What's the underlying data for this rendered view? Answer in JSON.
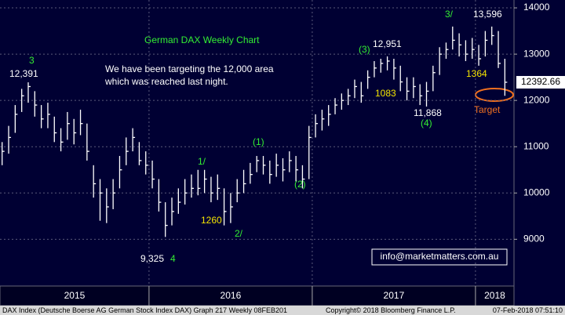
{
  "chart_data": {
    "type": "ohlc",
    "title": "German DAX Weekly Chart",
    "subtitle": [
      "We have been targeting the 12,000 area",
      "which was reached last night."
    ],
    "x": [
      2015.1,
      2015.14,
      2015.18,
      2015.22,
      2015.26,
      2015.3,
      2015.34,
      2015.38,
      2015.42,
      2015.46,
      2015.5,
      2015.54,
      2015.58,
      2015.62,
      2015.66,
      2015.7,
      2015.74,
      2015.78,
      2015.82,
      2015.86,
      2015.9,
      2015.94,
      2015.98,
      2016.02,
      2016.06,
      2016.1,
      2016.14,
      2016.18,
      2016.22,
      2016.26,
      2016.3,
      2016.34,
      2016.38,
      2016.42,
      2016.46,
      2016.5,
      2016.54,
      2016.58,
      2016.62,
      2016.66,
      2016.7,
      2016.74,
      2016.78,
      2016.82,
      2016.86,
      2016.9,
      2016.94,
      2016.98,
      2017.02,
      2017.06,
      2017.1,
      2017.14,
      2017.18,
      2017.22,
      2017.26,
      2017.3,
      2017.34,
      2017.38,
      2017.42,
      2017.46,
      2017.5,
      2017.54,
      2017.58,
      2017.62,
      2017.66,
      2017.7,
      2017.74,
      2017.78,
      2017.82,
      2017.86,
      2017.9,
      2017.94,
      2017.98,
      2018.02,
      2018.06,
      2018.1,
      2018.14,
      2018.18
    ],
    "series": [
      {
        "name": "DAX Index",
        "color": "#ffffff",
        "high": [
          11100,
          11450,
          11900,
          12250,
          12391,
          12200,
          11900,
          11950,
          11650,
          11400,
          11750,
          11600,
          11800,
          11500,
          10600,
          10300,
          10100,
          10300,
          10800,
          11200,
          11400,
          11100,
          10900,
          10700,
          10300,
          9800,
          9900,
          10100,
          10300,
          10400,
          10500,
          10500,
          10350,
          10400,
          10100,
          10000,
          10300,
          10500,
          10650,
          10800,
          10800,
          10700,
          10850,
          10750,
          10900,
          10800,
          10600,
          11450,
          11700,
          11800,
          11900,
          12050,
          12150,
          12250,
          12450,
          12400,
          12650,
          12850,
          12900,
          12951,
          12900,
          12750,
          12500,
          12500,
          12350,
          12400,
          12750,
          13150,
          13250,
          13596,
          13450,
          13300,
          13350,
          13200,
          13500,
          13596,
          13500,
          12900
        ],
        "low": [
          10600,
          10850,
          11300,
          11750,
          11950,
          11650,
          11400,
          11400,
          11100,
          10900,
          11150,
          11050,
          11250,
          10700,
          9900,
          9400,
          9350,
          9650,
          10100,
          10600,
          10900,
          10600,
          10400,
          10100,
          9600,
          9050,
          9300,
          9550,
          9750,
          9900,
          9950,
          10000,
          9800,
          9850,
          9300,
          9350,
          9800,
          10000,
          10200,
          10450,
          10400,
          10200,
          10350,
          10250,
          10450,
          10250,
          10100,
          10300,
          11200,
          11350,
          11450,
          11700,
          11800,
          11900,
          12050,
          11950,
          12250,
          12500,
          12600,
          12650,
          12450,
          12200,
          12000,
          12050,
          11900,
          11868,
          12200,
          12550,
          12900,
          13100,
          12950,
          12850,
          12900,
          12750,
          12950,
          13200,
          12700,
          12100
        ],
        "close": [
          10900,
          11200,
          11700,
          12100,
          12300,
          11900,
          11600,
          11700,
          11300,
          11100,
          11500,
          11300,
          11500,
          10900,
          10200,
          10000,
          9700,
          10000,
          10500,
          10900,
          11200,
          10700,
          10600,
          10300,
          9800,
          9300,
          9600,
          9800,
          10000,
          10100,
          10100,
          10300,
          10000,
          10100,
          9600,
          9700,
          10000,
          10200,
          10400,
          10700,
          10600,
          10400,
          10600,
          10500,
          10700,
          10500,
          10300,
          11200,
          11500,
          11600,
          11700,
          11900,
          12000,
          12100,
          12300,
          12100,
          12500,
          12700,
          12800,
          12850,
          12700,
          12400,
          12200,
          12300,
          12100,
          12200,
          12600,
          13000,
          13100,
          13300,
          13200,
          13000,
          13100,
          12900,
          13300,
          13400,
          12800,
          12392.66
        ],
        "last_label": "12392.66"
      }
    ],
    "xlim": [
      2015.087,
      2018.236
    ],
    "xticks": [
      {
        "value": 2015,
        "label": "2015"
      },
      {
        "value": 2016,
        "label": "2016"
      },
      {
        "value": 2017,
        "label": "2017"
      },
      {
        "value": 2018,
        "label": "2018"
      }
    ],
    "ylim": [
      7990,
      14170
    ],
    "yticks": [
      9000,
      10000,
      11000,
      12000,
      13000,
      14000
    ],
    "grid": true,
    "annotations": [
      {
        "text": "3",
        "color": "#33ee33"
      },
      {
        "text": "12,391",
        "color": "#ffffff"
      },
      {
        "text": "9,325",
        "color": "#ffffff"
      },
      {
        "text": "4",
        "color": "#33ee33"
      },
      {
        "text": "1/",
        "color": "#33ee33"
      },
      {
        "text": "1260",
        "color": "#f5e500"
      },
      {
        "text": "2/",
        "color": "#33ee33"
      },
      {
        "text": "(1)",
        "color": "#33ee33"
      },
      {
        "text": "(2)",
        "color": "#33ee33"
      },
      {
        "text": "(3)",
        "color": "#33ee33"
      },
      {
        "text": "12,951",
        "color": "#ffffff"
      },
      {
        "text": "1083",
        "color": "#f5e500"
      },
      {
        "text": "11,868",
        "color": "#ffffff"
      },
      {
        "text": "(4)",
        "color": "#33ee33"
      },
      {
        "text": "3/",
        "color": "#33ee33"
      },
      {
        "text": "13,596",
        "color": "#ffffff"
      },
      {
        "text": "1364",
        "color": "#f5e500"
      },
      {
        "text": "Target",
        "color": "#f07020"
      }
    ],
    "contact": "info@marketmatters.com.au",
    "footer": [
      "DAX Index (Deutsche Boerse AG German Stock Index DAX) Graph 217  Weekly 08FEB201",
      "Copyright© 2018 Bloomberg Finance L.P.",
      "07-Feb-2018 07:51:10"
    ]
  }
}
